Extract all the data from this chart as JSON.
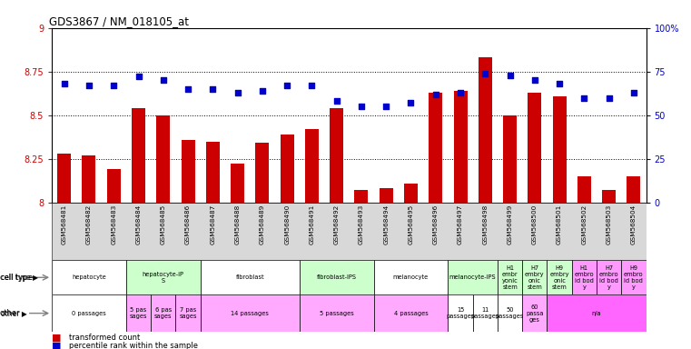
{
  "title": "GDS3867 / NM_018105_at",
  "samples": [
    "GSM568481",
    "GSM568482",
    "GSM568483",
    "GSM568484",
    "GSM568485",
    "GSM568486",
    "GSM568487",
    "GSM568488",
    "GSM568489",
    "GSM568490",
    "GSM568491",
    "GSM568492",
    "GSM568493",
    "GSM568494",
    "GSM568495",
    "GSM568496",
    "GSM568497",
    "GSM568498",
    "GSM568499",
    "GSM568500",
    "GSM568501",
    "GSM568502",
    "GSM568503",
    "GSM568504"
  ],
  "bar_values": [
    8.28,
    8.27,
    8.19,
    8.54,
    8.5,
    8.36,
    8.35,
    8.22,
    8.34,
    8.39,
    8.42,
    8.54,
    8.07,
    8.08,
    8.11,
    8.63,
    8.64,
    8.83,
    8.5,
    8.63,
    8.61,
    8.15,
    8.07,
    8.15
  ],
  "dot_values": [
    68,
    67,
    67,
    72,
    70,
    65,
    65,
    63,
    64,
    67,
    67,
    58,
    55,
    55,
    57,
    62,
    63,
    74,
    73,
    70,
    68,
    60,
    60,
    63
  ],
  "ylim_left": [
    8.0,
    9.0
  ],
  "ylim_right": [
    0,
    100
  ],
  "yticks_left": [
    8.0,
    8.25,
    8.5,
    8.75,
    9.0
  ],
  "yticks_right": [
    0,
    25,
    50,
    75,
    100
  ],
  "ytick_labels_left": [
    "8",
    "8.25",
    "8.5",
    "8.75",
    "9"
  ],
  "ytick_labels_right": [
    "0",
    "25",
    "50",
    "75",
    "100%"
  ],
  "bar_color": "#cc0000",
  "dot_color": "#0000cc",
  "bg_color": "#ffffff",
  "tick_color_left": "#cc0000",
  "tick_color_right": "#0000cc",
  "cell_groups": [
    {
      "label": "hepatocyte",
      "cols": [
        0,
        1,
        2
      ],
      "color": "#ffffff"
    },
    {
      "label": "hepatocyte-iP\nS",
      "cols": [
        3,
        4,
        5
      ],
      "color": "#ccffcc"
    },
    {
      "label": "fibroblast",
      "cols": [
        6,
        7,
        8,
        9
      ],
      "color": "#ffffff"
    },
    {
      "label": "fibroblast-IPS",
      "cols": [
        10,
        11,
        12
      ],
      "color": "#ccffcc"
    },
    {
      "label": "melanocyte",
      "cols": [
        13,
        14,
        15
      ],
      "color": "#ffffff"
    },
    {
      "label": "melanocyte-IPS",
      "cols": [
        16,
        17
      ],
      "color": "#ccffcc"
    },
    {
      "label": "H1\nembr\nyonic\nstem",
      "cols": [
        18
      ],
      "color": "#ccffcc"
    },
    {
      "label": "H7\nembry\nonic\nstem",
      "cols": [
        19
      ],
      "color": "#ccffcc"
    },
    {
      "label": "H9\nembry\nonic\nstem",
      "cols": [
        20
      ],
      "color": "#ccffcc"
    },
    {
      "label": "H1\nembro\nid bod\ny",
      "cols": [
        21
      ],
      "color": "#ff99ff"
    },
    {
      "label": "H7\nembro\nid bod\ny",
      "cols": [
        22
      ],
      "color": "#ff99ff"
    },
    {
      "label": "H9\nembro\nid bod\ny",
      "cols": [
        23
      ],
      "color": "#ff99ff"
    }
  ],
  "other_groups": [
    {
      "label": "0 passages",
      "cols": [
        0,
        1,
        2
      ],
      "color": "#ffffff"
    },
    {
      "label": "5 pas\nsages",
      "cols": [
        3
      ],
      "color": "#ffaaff"
    },
    {
      "label": "6 pas\nsages",
      "cols": [
        4
      ],
      "color": "#ffaaff"
    },
    {
      "label": "7 pas\nsages",
      "cols": [
        5
      ],
      "color": "#ffaaff"
    },
    {
      "label": "14 passages",
      "cols": [
        6,
        7,
        8,
        9
      ],
      "color": "#ffaaff"
    },
    {
      "label": "5 passages",
      "cols": [
        10,
        11,
        12
      ],
      "color": "#ffaaff"
    },
    {
      "label": "4 passages",
      "cols": [
        13,
        14,
        15
      ],
      "color": "#ffaaff"
    },
    {
      "label": "15\npassages",
      "cols": [
        16
      ],
      "color": "#ffffff"
    },
    {
      "label": "11\npassages",
      "cols": [
        17
      ],
      "color": "#ffffff"
    },
    {
      "label": "50\npassages",
      "cols": [
        18
      ],
      "color": "#ffffff"
    },
    {
      "label": "60\npassa\nges",
      "cols": [
        19
      ],
      "color": "#ffaaff"
    },
    {
      "label": "n/a",
      "cols": [
        20,
        21,
        22,
        23
      ],
      "color": "#ff66ff"
    }
  ]
}
